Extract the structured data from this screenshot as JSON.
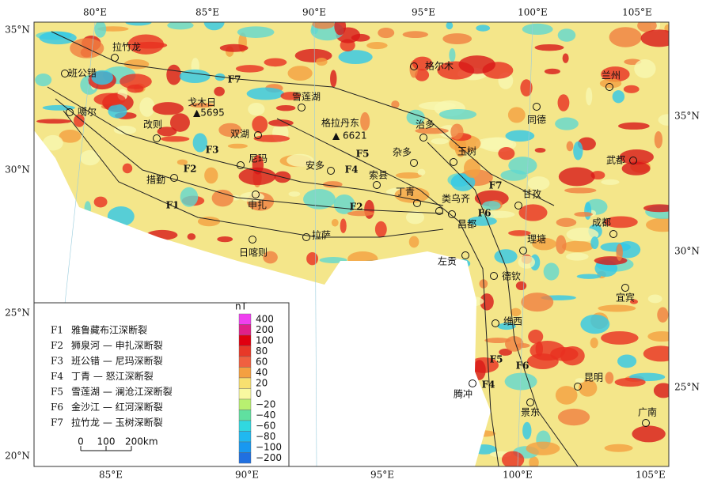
{
  "map": {
    "top_lon_labels": [
      "80°E",
      "85°E",
      "90°E",
      "95°E",
      "100°E",
      "105°E"
    ],
    "bottom_lon_labels": [
      "85°E",
      "90°E",
      "95°E",
      "100°E",
      "105°E"
    ],
    "left_lat_labels": [
      "35°N",
      "30°N",
      "25°N",
      "20°N"
    ],
    "right_lat_labels": [
      "35°N",
      "30°N",
      "25°N"
    ],
    "places": [
      "拉竹龙",
      "班公错",
      "噶尔",
      "改则",
      "双湖",
      "雪莲湖",
      "尼玛",
      "措勤",
      "申扎",
      "日喀则",
      "拉萨",
      "安多",
      "索县",
      "丁青",
      "杂多",
      "治多",
      "格尔木",
      "玉树",
      "类乌齐",
      "昌都",
      "甘孜",
      "左贡",
      "理塘",
      "德钦",
      "同德",
      "兰州",
      "武都",
      "成都",
      "宜宾",
      "维西",
      "昆明",
      "腾冲",
      "景东",
      "广南"
    ],
    "peak_names": [
      "戈木日",
      "格拉丹东"
    ],
    "peaks": [
      "▲5695",
      "▲ 6621"
    ],
    "fault_labels": [
      "F7",
      "F7",
      "F3",
      "F2",
      "F1",
      "F5",
      "F4",
      "F2",
      "F6",
      "F5",
      "F6",
      "F4"
    ]
  },
  "legend": {
    "faults": [
      {
        "code": "F1",
        "name": "雅鲁藏布江深断裂"
      },
      {
        "code": "F2",
        "name": "狮泉河 — 申扎深断裂"
      },
      {
        "code": "F3",
        "name": "班公错 — 尼玛深断裂"
      },
      {
        "code": "F4",
        "name": "丁青 — 怒江深断裂"
      },
      {
        "code": "F5",
        "name": "雪莲湖 — 澜沧江深断裂"
      },
      {
        "code": "F6",
        "name": "金沙江 — 红河深断裂"
      },
      {
        "code": "F7",
        "name": "拉竹龙 — 玉树深断裂"
      }
    ]
  },
  "colorbar": {
    "unit": "nT",
    "labels": [
      "400",
      "200",
      "100",
      "80",
      "60",
      "40",
      "20",
      "0",
      "−20",
      "−40",
      "−60",
      "−80",
      "−100",
      "−200"
    ],
    "colors": [
      "#f040f0",
      "#e0208a",
      "#e00010",
      "#e83828",
      "#f06040",
      "#f4a040",
      "#f8e070",
      "#f8f8a0",
      "#b8f070",
      "#60e0a0",
      "#30d8e0",
      "#20b8f0",
      "#1898f0",
      "#2070e0"
    ]
  },
  "scale": {
    "labels": [
      "0",
      "100",
      "200km"
    ]
  }
}
